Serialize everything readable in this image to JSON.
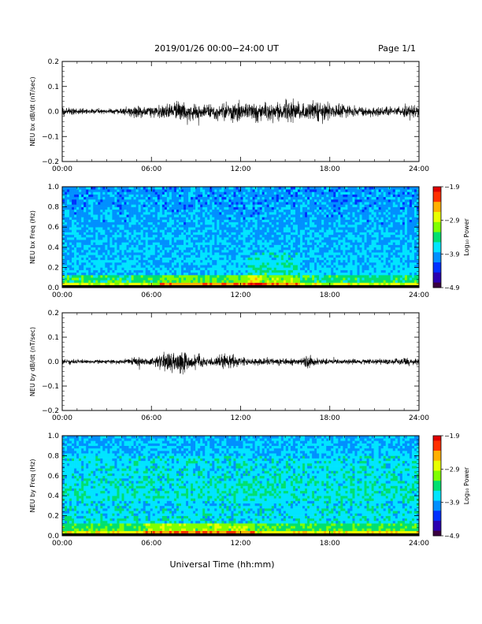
{
  "header": {
    "title": "2019/01/26  00:00−24:00 UT",
    "page": "Page 1/1"
  },
  "footer": {
    "xlabel": "Universal Time (hh:mm)"
  },
  "colors": {
    "background": "#ffffff",
    "axis": "#000000",
    "trace": "#000000",
    "colormap": [
      "#3b0040",
      "#2a00b0",
      "#0030ff",
      "#0090ff",
      "#00e5ff",
      "#00e070",
      "#7fff00",
      "#e8ff00",
      "#ffb000",
      "#ff3000",
      "#e00000"
    ]
  },
  "chart_data": [
    {
      "id": "bx-timeseries",
      "type": "line",
      "ylabel": "NEU bx dB/dt (nT/sec)",
      "x_ticks": [
        "00:00",
        "06:00",
        "12:00",
        "18:00",
        "24:00"
      ],
      "xlim_hours": [
        0,
        24
      ],
      "ylim": [
        -0.2,
        0.2
      ],
      "y_ticks": [
        "0.2",
        "0.1",
        "0.0",
        "−0.1",
        "−0.2"
      ],
      "envelope": {
        "hours": [
          0,
          0.5,
          1,
          2,
          3,
          4,
          4.5,
          5,
          6,
          6.5,
          7,
          7.5,
          8,
          8.5,
          9,
          10,
          11,
          11.5,
          12,
          12.5,
          13,
          13.5,
          14,
          14.5,
          15,
          16,
          17,
          18,
          19,
          20,
          21,
          22,
          23,
          24
        ],
        "amplitude": [
          0.025,
          0.018,
          0.012,
          0.01,
          0.01,
          0.012,
          0.02,
          0.025,
          0.018,
          0.03,
          0.035,
          0.04,
          0.04,
          0.035,
          0.03,
          0.03,
          0.035,
          0.045,
          0.04,
          0.035,
          0.045,
          0.04,
          0.04,
          0.04,
          0.045,
          0.04,
          0.04,
          0.035,
          0.025,
          0.02,
          0.02,
          0.02,
          0.025,
          0.03
        ]
      }
    },
    {
      "id": "bx-spectrogram",
      "type": "heatmap",
      "ylabel": "NEU bx Freq (Hz)",
      "x_ticks": [
        "00:00",
        "06:00",
        "12:00",
        "18:00",
        "24:00"
      ],
      "xlim_hours": [
        0,
        24
      ],
      "ylim": [
        0,
        1.0
      ],
      "y_ticks": [
        "1.0",
        "0.8",
        "0.6",
        "0.4",
        "0.2",
        "0.0"
      ],
      "colorbar": {
        "label": "Log₁₀ Power",
        "ticks": [
          "−1.9",
          "−2.9",
          "−3.9",
          "−4.9"
        ],
        "range": [
          -4.9,
          -1.9
        ]
      },
      "features": {
        "low_freq_enhancement_hours": [
          6.5,
          13.5
        ],
        "mid_freq_enhancement_hours": [
          12.5,
          16.0
        ]
      }
    },
    {
      "id": "by-timeseries",
      "type": "line",
      "ylabel": "NEU by dB/dt (nT/sec)",
      "x_ticks": [
        "00:00",
        "06:00",
        "12:00",
        "18:00",
        "24:00"
      ],
      "xlim_hours": [
        0,
        24
      ],
      "ylim": [
        -0.2,
        0.2
      ],
      "y_ticks": [
        "0.2",
        "0.1",
        "0.0",
        "−0.1",
        "−0.2"
      ],
      "envelope": {
        "hours": [
          0,
          1,
          2,
          3,
          4,
          4.5,
          5,
          6,
          6.5,
          7,
          7.5,
          8,
          8.5,
          9,
          10,
          10.5,
          11,
          11.5,
          12,
          13,
          14,
          15,
          16,
          16.5,
          17,
          18,
          19,
          20,
          21,
          22,
          23,
          24
        ],
        "amplitude": [
          0.01,
          0.01,
          0.008,
          0.008,
          0.01,
          0.015,
          0.018,
          0.015,
          0.035,
          0.045,
          0.05,
          0.05,
          0.04,
          0.03,
          0.015,
          0.02,
          0.035,
          0.03,
          0.018,
          0.015,
          0.018,
          0.015,
          0.012,
          0.03,
          0.015,
          0.012,
          0.01,
          0.012,
          0.012,
          0.012,
          0.015,
          0.015
        ]
      }
    },
    {
      "id": "by-spectrogram",
      "type": "heatmap",
      "ylabel": "NEU by Freq (Hz)",
      "x_ticks": [
        "00:00",
        "06:00",
        "12:00",
        "18:00",
        "24:00"
      ],
      "xlim_hours": [
        0,
        24
      ],
      "ylim": [
        0,
        1.0
      ],
      "y_ticks": [
        "1.0",
        "0.8",
        "0.6",
        "0.4",
        "0.2",
        "0.0"
      ],
      "colorbar": {
        "label": "Log₁₀ Power",
        "ticks": [
          "−1.9",
          "−2.9",
          "−3.9",
          "−4.9"
        ],
        "range": [
          -4.9,
          -1.9
        ]
      },
      "features": {
        "low_freq_enhancement_hours": [
          5.5,
          13.0
        ],
        "data_gap_hours": [
          6.85,
          6.95
        ]
      }
    }
  ]
}
